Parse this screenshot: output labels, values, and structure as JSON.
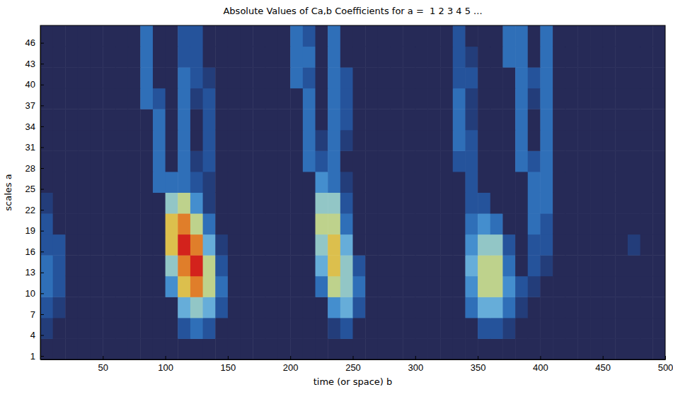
{
  "chart_data": {
    "type": "heatmap",
    "title": "Absolute Values of Ca,b Coefficients for a =  1 2 3 4 5 ...",
    "x_label": "time (or space) b",
    "y_label": "scales a",
    "xlim": [
      0,
      500
    ],
    "ylim": [
      0.5,
      48.5
    ],
    "xticks": [
      50,
      100,
      150,
      200,
      250,
      300,
      350,
      400,
      450,
      500
    ],
    "yticks": [
      1,
      4,
      7,
      10,
      13,
      16,
      19,
      22,
      25,
      28,
      31,
      34,
      37,
      40,
      43,
      46
    ],
    "zlim": [
      0,
      10
    ],
    "x": [
      5,
      15,
      25,
      35,
      45,
      55,
      65,
      75,
      85,
      95,
      105,
      115,
      125,
      135,
      145,
      155,
      165,
      175,
      185,
      195,
      205,
      215,
      225,
      235,
      245,
      255,
      265,
      275,
      285,
      295,
      305,
      315,
      325,
      335,
      345,
      355,
      365,
      375,
      385,
      395,
      405,
      415,
      425,
      435,
      445,
      455,
      465,
      475,
      485,
      495
    ],
    "y": [
      2,
      5,
      8,
      11,
      14,
      17,
      20,
      23,
      26,
      29,
      32,
      35,
      38,
      41,
      44,
      47
    ],
    "z": [
      [
        0,
        0,
        0,
        0,
        0,
        0,
        0,
        0,
        0,
        0,
        0,
        0,
        0,
        0,
        0,
        0,
        0,
        0,
        0,
        0,
        0,
        0,
        0,
        0,
        0,
        0,
        0,
        0,
        0,
        0,
        0,
        0,
        0,
        0,
        0,
        0,
        0,
        0,
        0,
        0,
        0,
        0,
        0,
        0,
        0,
        0,
        0,
        0,
        0,
        0
      ],
      [
        1,
        0,
        0,
        0,
        0,
        0,
        0,
        0,
        0,
        0,
        0,
        2,
        3,
        2,
        0,
        0,
        0,
        0,
        0,
        0,
        0,
        0,
        0,
        1,
        2,
        0,
        0,
        0,
        0,
        0,
        0,
        0,
        0,
        0,
        0,
        2,
        2,
        1,
        0,
        0,
        0,
        0,
        0,
        0,
        0,
        0,
        0,
        0,
        0,
        0
      ],
      [
        2,
        1,
        0,
        0,
        0,
        0,
        0,
        0,
        0,
        0,
        0,
        5,
        6,
        5,
        2,
        0,
        0,
        0,
        0,
        0,
        0,
        0,
        0,
        4,
        5,
        2,
        0,
        0,
        0,
        0,
        0,
        0,
        0,
        0,
        3,
        5,
        5,
        3,
        1,
        0,
        0,
        0,
        0,
        0,
        0,
        0,
        0,
        0,
        0,
        0
      ],
      [
        3,
        2,
        0,
        0,
        0,
        0,
        0,
        0,
        0,
        0,
        4,
        8,
        9,
        7,
        3,
        0,
        0,
        0,
        0,
        0,
        0,
        0,
        3,
        7,
        6,
        3,
        0,
        0,
        0,
        0,
        0,
        0,
        0,
        0,
        4,
        7,
        7,
        4,
        2,
        1,
        0,
        0,
        0,
        0,
        0,
        0,
        0,
        0,
        0,
        0
      ],
      [
        3,
        2,
        0,
        0,
        0,
        0,
        0,
        0,
        0,
        0,
        6,
        9,
        10,
        7,
        2,
        0,
        0,
        0,
        0,
        0,
        0,
        0,
        5,
        8,
        6,
        2,
        0,
        0,
        0,
        0,
        0,
        0,
        0,
        0,
        5,
        7,
        7,
        3,
        0,
        2,
        1,
        0,
        0,
        0,
        0,
        0,
        0,
        0,
        0,
        0
      ],
      [
        2,
        2,
        0,
        0,
        0,
        0,
        0,
        0,
        0,
        0,
        8,
        10,
        9,
        5,
        1,
        0,
        0,
        0,
        0,
        0,
        0,
        0,
        6,
        8,
        5,
        0,
        0,
        0,
        0,
        0,
        0,
        0,
        0,
        0,
        4,
        6,
        6,
        2,
        0,
        2,
        2,
        0,
        0,
        0,
        0,
        0,
        0,
        1,
        0,
        0
      ],
      [
        2,
        0,
        0,
        0,
        0,
        0,
        0,
        0,
        0,
        0,
        8,
        9,
        7,
        3,
        0,
        0,
        0,
        0,
        0,
        0,
        0,
        0,
        7,
        7,
        3,
        0,
        0,
        0,
        0,
        0,
        0,
        0,
        0,
        0,
        3,
        4,
        3,
        0,
        0,
        3,
        2,
        0,
        0,
        0,
        0,
        0,
        0,
        0,
        0,
        0
      ],
      [
        1,
        0,
        0,
        0,
        0,
        0,
        0,
        0,
        0,
        0,
        6,
        7,
        4,
        1,
        0,
        0,
        0,
        0,
        0,
        0,
        0,
        0,
        6,
        6,
        2,
        0,
        0,
        0,
        0,
        0,
        0,
        0,
        0,
        0,
        2,
        2,
        0,
        0,
        0,
        3,
        3,
        0,
        0,
        0,
        0,
        0,
        0,
        0,
        0,
        0
      ],
      [
        0,
        0,
        0,
        0,
        0,
        0,
        0,
        0,
        0,
        3,
        3,
        3,
        2,
        1,
        0,
        0,
        0,
        0,
        0,
        0,
        0,
        0,
        4,
        3,
        1,
        0,
        0,
        0,
        0,
        0,
        0,
        0,
        0,
        0,
        2,
        0,
        0,
        0,
        0,
        3,
        3,
        0,
        0,
        0,
        0,
        0,
        0,
        0,
        0,
        0
      ],
      [
        0,
        0,
        0,
        0,
        0,
        0,
        0,
        0,
        0,
        3,
        0,
        3,
        1,
        2,
        0,
        0,
        0,
        0,
        0,
        0,
        0,
        3,
        2,
        3,
        0,
        0,
        0,
        0,
        0,
        0,
        0,
        0,
        0,
        2,
        2,
        0,
        0,
        0,
        3,
        2,
        3,
        0,
        0,
        0,
        0,
        0,
        0,
        0,
        0,
        0
      ],
      [
        0,
        0,
        0,
        0,
        0,
        0,
        0,
        0,
        0,
        3,
        0,
        3,
        0,
        2,
        0,
        0,
        0,
        0,
        0,
        0,
        0,
        3,
        1,
        3,
        1,
        0,
        0,
        0,
        0,
        0,
        0,
        0,
        0,
        3,
        2,
        0,
        0,
        0,
        3,
        0,
        3,
        0,
        0,
        0,
        0,
        0,
        0,
        0,
        0,
        0
      ],
      [
        0,
        0,
        0,
        0,
        0,
        0,
        0,
        0,
        0,
        3,
        0,
        3,
        0,
        2,
        0,
        0,
        0,
        0,
        0,
        0,
        0,
        3,
        0,
        3,
        2,
        0,
        0,
        0,
        0,
        0,
        0,
        0,
        0,
        3,
        1,
        0,
        0,
        0,
        3,
        0,
        3,
        0,
        0,
        0,
        0,
        0,
        0,
        0,
        0,
        0
      ],
      [
        0,
        0,
        0,
        0,
        0,
        0,
        0,
        0,
        3,
        2,
        0,
        3,
        1,
        2,
        0,
        0,
        0,
        0,
        0,
        0,
        0,
        3,
        0,
        3,
        2,
        0,
        0,
        0,
        0,
        0,
        0,
        0,
        0,
        3,
        1,
        0,
        0,
        0,
        3,
        1,
        3,
        0,
        0,
        0,
        0,
        0,
        0,
        0,
        0,
        0
      ],
      [
        0,
        0,
        0,
        0,
        0,
        0,
        0,
        0,
        3,
        0,
        0,
        3,
        2,
        1,
        0,
        0,
        0,
        0,
        0,
        0,
        3,
        2,
        0,
        3,
        2,
        0,
        0,
        0,
        0,
        0,
        0,
        0,
        0,
        2,
        2,
        0,
        0,
        0,
        3,
        2,
        3,
        0,
        0,
        0,
        0,
        0,
        0,
        0,
        0,
        0
      ],
      [
        0,
        0,
        0,
        0,
        0,
        0,
        0,
        0,
        3,
        0,
        0,
        2,
        2,
        0,
        0,
        0,
        0,
        0,
        0,
        0,
        3,
        3,
        0,
        3,
        0,
        0,
        0,
        0,
        0,
        0,
        0,
        0,
        0,
        2,
        1,
        0,
        0,
        3,
        3,
        0,
        3,
        0,
        0,
        0,
        0,
        0,
        0,
        0,
        0,
        0
      ],
      [
        0,
        0,
        0,
        0,
        0,
        0,
        0,
        0,
        3,
        0,
        0,
        2,
        2,
        0,
        0,
        0,
        0,
        0,
        0,
        0,
        3,
        2,
        0,
        3,
        0,
        0,
        0,
        0,
        0,
        0,
        0,
        0,
        0,
        2,
        0,
        0,
        0,
        3,
        3,
        0,
        3,
        0,
        0,
        0,
        0,
        0,
        0,
        0,
        0,
        0
      ]
    ]
  }
}
